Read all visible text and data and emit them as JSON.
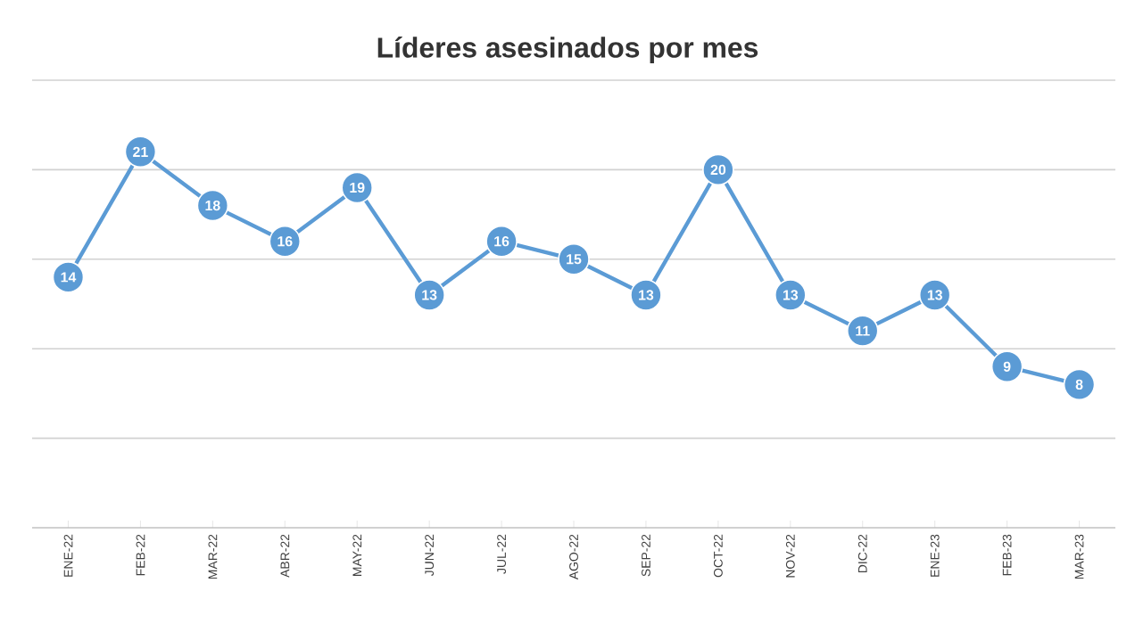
{
  "chart_data": {
    "type": "line",
    "title": "Líderes asesinados por mes",
    "categories": [
      "ENE-22",
      "FEB-22",
      "MAR-22",
      "ABR-22",
      "MAY-22",
      "JUN-22",
      "JUL-22",
      "AGO-22",
      "SEP-22",
      "OCT-22",
      "NOV-22",
      "DIC-22",
      "ENE-23",
      "FEB-23",
      "MAR-23"
    ],
    "values": [
      14,
      21,
      18,
      16,
      19,
      13,
      16,
      15,
      13,
      20,
      13,
      11,
      13,
      9,
      8
    ],
    "color": "#5b9bd5",
    "marker": "circle",
    "line_style": "solid",
    "data_labels": true,
    "grid": "y",
    "tick_labels": "x",
    "ylim": [
      0,
      25
    ],
    "yticks": [
      {
        "value": 0,
        "label": null
      },
      {
        "value": 5,
        "label": null
      },
      {
        "value": 10,
        "label": null
      },
      {
        "value": 15,
        "label": null
      },
      {
        "value": 20,
        "label": null
      },
      {
        "value": 25,
        "label": null
      }
    ]
  }
}
